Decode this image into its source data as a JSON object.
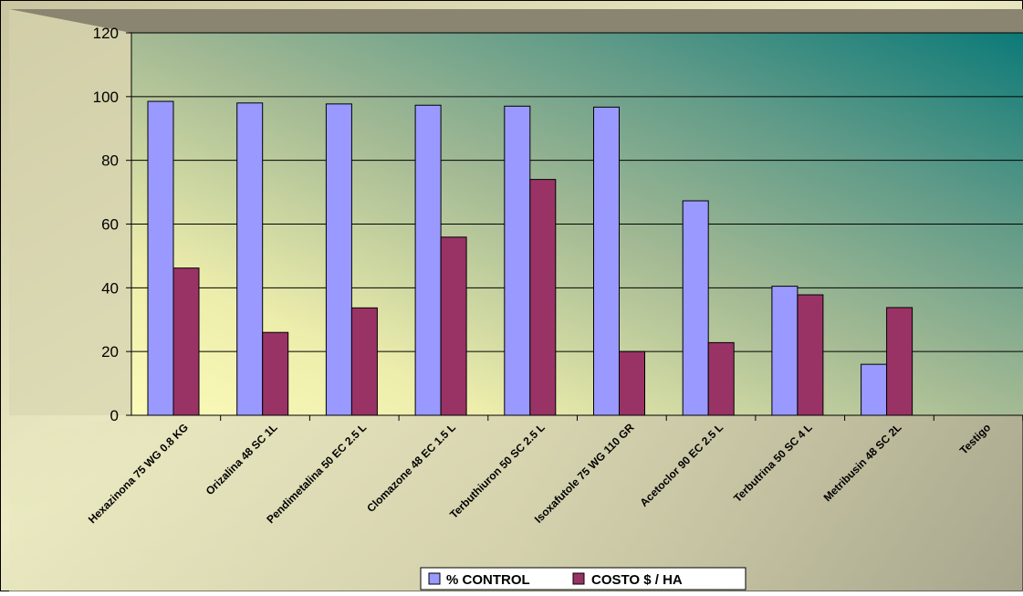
{
  "chart_data": {
    "type": "bar",
    "title": "",
    "xlabel": "",
    "ylabel": "",
    "ylim": [
      0,
      120
    ],
    "yticks": [
      0,
      20,
      40,
      60,
      80,
      100,
      120
    ],
    "grid": true,
    "legend_position": "bottom",
    "categories": [
      "Hexazinona 75 WG 0.8 KG",
      "Orizalina 48 SC 1L",
      "Pendimetalina 50 EC  2.5 L",
      "Clomazone 48 EC 1.5 L",
      "Terbuthiuron 50 SC 2.5 L",
      "Isoxafutole 75 WG 110 GR",
      "Acetoclor 90 EC 2.5 L",
      "Terbutrina 50 SC 4 L",
      "Metribusin 48 SC 2L",
      "Testigo"
    ],
    "series": [
      {
        "name": "% CONTROL",
        "color": "#9999ff",
        "values": [
          98.5,
          98,
          97.7,
          97.3,
          97,
          96.7,
          67.3,
          40.5,
          16,
          0
        ]
      },
      {
        "name": "COSTO $ / HA",
        "color": "#993366",
        "values": [
          46.2,
          26,
          33.7,
          55.9,
          74,
          20,
          22.8,
          37.8,
          33.8,
          0
        ]
      }
    ]
  }
}
